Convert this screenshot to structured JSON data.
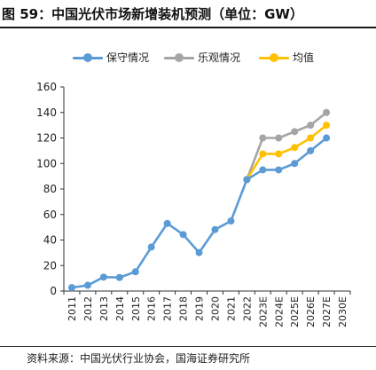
{
  "figure": {
    "title": "图 59：中国光伏市场新增装机预测（单位：GW）",
    "source": "资料来源：中国光伏行业协会，国海证券研究所"
  },
  "chart_data": {
    "type": "line",
    "title": "图 59：中国光伏市场新增装机预测（单位：GW）",
    "xlabel": "",
    "ylabel": "",
    "ylim": [
      0,
      160
    ],
    "yticks": [
      0,
      20,
      40,
      60,
      80,
      100,
      120,
      140,
      160
    ],
    "x": [
      "2011",
      "2012",
      "2013",
      "2014",
      "2015",
      "2016",
      "2017",
      "2018",
      "2019",
      "2020",
      "2021",
      "2022",
      "2023E",
      "2024E",
      "2025E",
      "2026E",
      "2027E",
      "2030E"
    ],
    "grid": false,
    "legend_position": "top",
    "series": [
      {
        "name": "保守情况",
        "color": "#5b9bd5",
        "values": [
          2.7,
          4.5,
          10.9,
          10.6,
          15.1,
          34.5,
          53,
          44.3,
          30.1,
          48.2,
          54.9,
          87.4,
          95,
          95,
          100,
          110,
          120,
          null
        ]
      },
      {
        "name": "乐观情况",
        "color": "#a5a5a5",
        "values": [
          null,
          null,
          null,
          null,
          null,
          null,
          null,
          null,
          null,
          null,
          null,
          87.4,
          120,
          120,
          125,
          130,
          140,
          null
        ]
      },
      {
        "name": "均值",
        "color": "#ffc000",
        "values": [
          null,
          null,
          null,
          null,
          null,
          null,
          null,
          null,
          null,
          null,
          null,
          87.4,
          107.5,
          107.5,
          112.5,
          120,
          130,
          null
        ]
      }
    ]
  }
}
